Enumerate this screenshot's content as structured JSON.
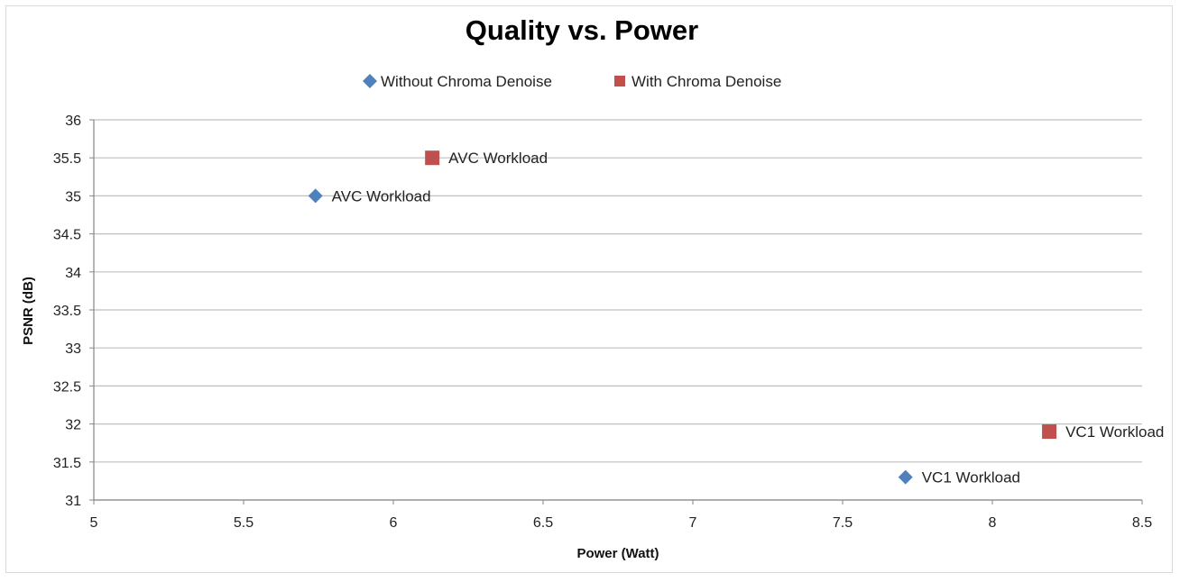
{
  "chart_data": {
    "type": "scatter",
    "title": "Quality vs. Power",
    "xlabel": "Power (Watt)",
    "ylabel": "PSNR (dB)",
    "xlim": [
      5,
      8.5
    ],
    "ylim": [
      31,
      36
    ],
    "x_ticks": [
      "5",
      "5.5",
      "6",
      "6.5",
      "7",
      "7.5",
      "8",
      "8.5"
    ],
    "y_ticks": [
      "31",
      "31.5",
      "32",
      "32.5",
      "33",
      "33.5",
      "34",
      "34.5",
      "35",
      "35.5",
      "36"
    ],
    "grid": "horizontal",
    "legend_position": "top",
    "series": [
      {
        "name": "Without Chroma Denoise",
        "marker": "diamond",
        "color": "#4f81bd",
        "points": [
          {
            "x": 5.74,
            "y": 35.0,
            "label": "AVC Workload"
          },
          {
            "x": 7.71,
            "y": 31.3,
            "label": "VC1 Workload"
          }
        ]
      },
      {
        "name": "With Chroma Denoise",
        "marker": "square",
        "color": "#c0504d",
        "points": [
          {
            "x": 6.13,
            "y": 35.5,
            "label": "AVC Workload"
          },
          {
            "x": 8.19,
            "y": 31.9,
            "label": "VC1 Workload"
          }
        ]
      }
    ]
  }
}
